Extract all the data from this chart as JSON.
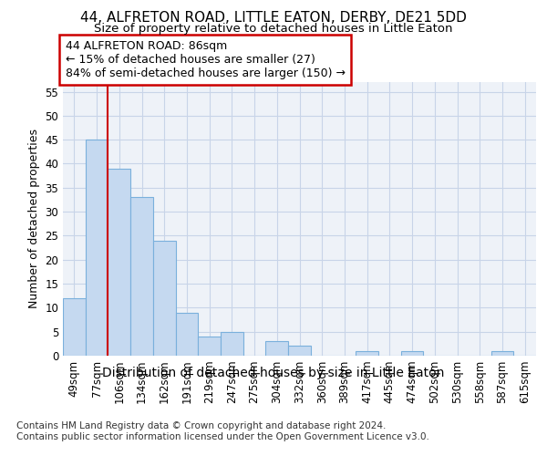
{
  "title": "44, ALFRETON ROAD, LITTLE EATON, DERBY, DE21 5DD",
  "subtitle": "Size of property relative to detached houses in Little Eaton",
  "xlabel": "Distribution of detached houses by size in Little Eaton",
  "ylabel": "Number of detached properties",
  "categories": [
    "49sqm",
    "77sqm",
    "106sqm",
    "134sqm",
    "162sqm",
    "191sqm",
    "219sqm",
    "247sqm",
    "275sqm",
    "304sqm",
    "332sqm",
    "360sqm",
    "389sqm",
    "417sqm",
    "445sqm",
    "474sqm",
    "502sqm",
    "530sqm",
    "558sqm",
    "587sqm",
    "615sqm"
  ],
  "values": [
    12,
    45,
    39,
    33,
    24,
    9,
    4,
    5,
    0,
    3,
    2,
    0,
    0,
    1,
    0,
    1,
    0,
    0,
    0,
    1,
    0
  ],
  "bar_color": "#c5d9f0",
  "bar_edge_color": "#7ab0dc",
  "vline_x": 1.5,
  "vline_color": "#cc0000",
  "ylim": [
    0,
    57
  ],
  "yticks": [
    0,
    5,
    10,
    15,
    20,
    25,
    30,
    35,
    40,
    45,
    50,
    55
  ],
  "annotation_line1": "44 ALFRETON ROAD: 86sqm",
  "annotation_line2": "← 15% of detached houses are smaller (27)",
  "annotation_line3": "84% of semi-detached houses are larger (150) →",
  "annotation_box_color": "#ffffff",
  "annotation_box_edge": "#cc0000",
  "footer": "Contains HM Land Registry data © Crown copyright and database right 2024.\nContains public sector information licensed under the Open Government Licence v3.0.",
  "background_color": "#ffffff",
  "plot_bg_color": "#eef2f8",
  "title_fontsize": 11,
  "subtitle_fontsize": 9.5,
  "xlabel_fontsize": 10,
  "ylabel_fontsize": 9,
  "tick_fontsize": 8.5,
  "footer_fontsize": 7.5,
  "annotation_fontsize": 9
}
